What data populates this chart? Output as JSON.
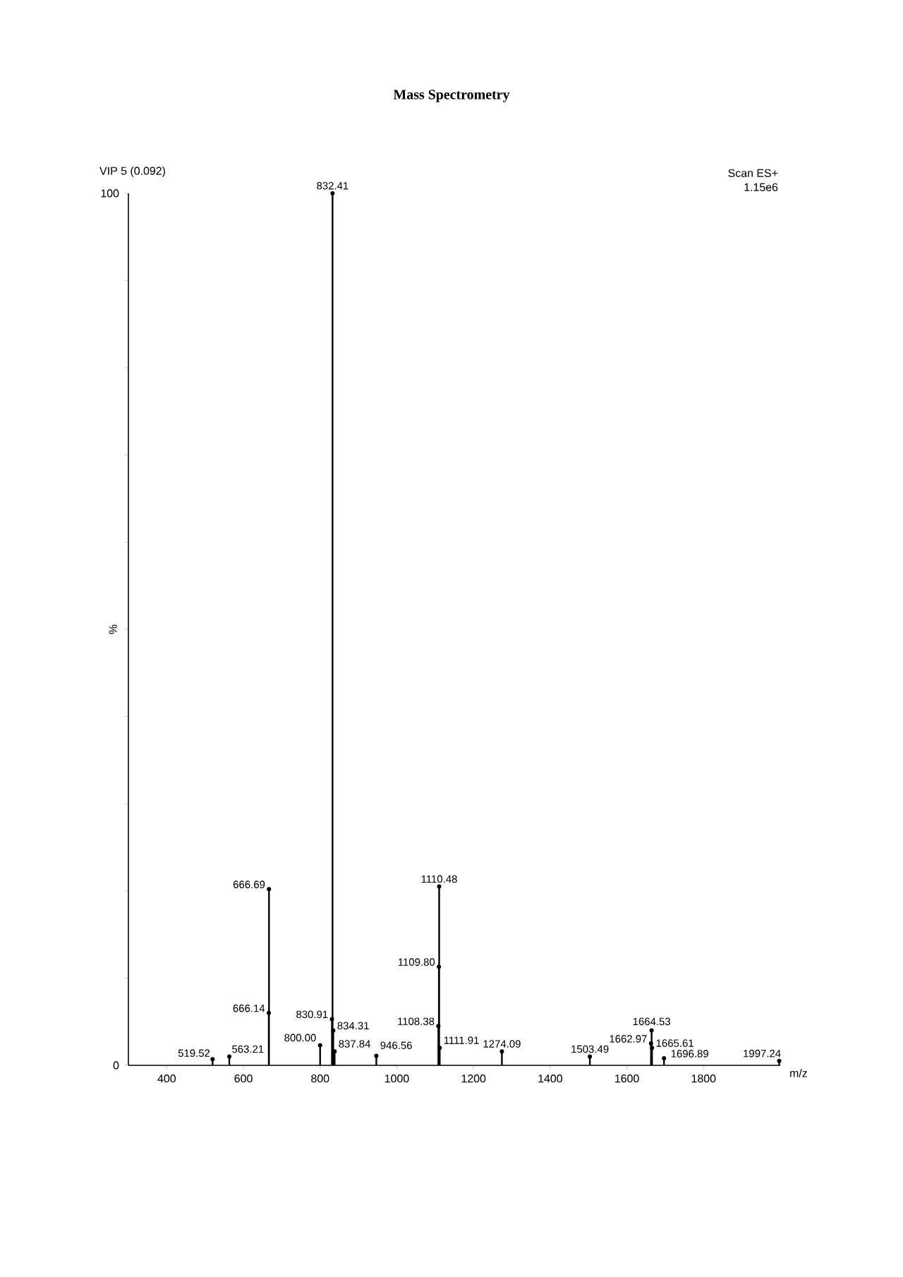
{
  "chart_data": {
    "type": "lollipop",
    "marker": "circle",
    "title": "Mass Spectrometry",
    "xlabel": "m/z",
    "ylabel": "%",
    "series": [
      {
        "color": "#000000",
        "x": [
          519.52,
          563.21,
          666.14,
          666.69,
          800.0,
          830.91,
          832.41,
          834.31,
          837.84,
          946.56,
          1108.38,
          1109.8,
          1110.48,
          1111.91,
          1274.09,
          1503.49,
          1662.97,
          1664.53,
          1665.61,
          1696.89,
          1997.24
        ],
        "values": [
          0.7,
          1,
          6,
          20.2,
          2.3,
          5.3,
          100,
          4,
          1.6,
          1.1,
          4.5,
          11.3,
          20.5,
          2,
          1.6,
          1,
          2.5,
          4,
          2,
          0.8,
          0.5
        ]
      }
    ],
    "xlim": [
      300,
      2000
    ],
    "ylim": [
      0,
      100
    ],
    "xticks": [
      400,
      600,
      800,
      1000,
      1200,
      1400,
      1600,
      1800
    ],
    "yticks": [
      0,
      {
        "value": 10,
        "label": null
      },
      {
        "value": 20,
        "label": null
      },
      {
        "value": 30,
        "label": null
      },
      {
        "value": 40,
        "label": null
      },
      {
        "value": 50,
        "label": null
      },
      {
        "value": 60,
        "label": null
      },
      {
        "value": 70,
        "label": null
      },
      {
        "value": 80,
        "label": null
      },
      {
        "value": 90,
        "label": null
      },
      100
    ],
    "annotations": [
      "VIP 5 (0.092)",
      "Scan ES+",
      "1.15e6",
      {
        "text": "519.52",
        "x": 519.52,
        "y": 0.7
      },
      {
        "text": "563.21",
        "x": 563.21,
        "y": 1
      },
      {
        "text": "666.14",
        "x": 666.14,
        "y": 6
      },
      {
        "text": "666.69",
        "x": 666.69,
        "y": 20.2
      },
      {
        "text": "800.00",
        "x": 800.0,
        "y": 2.3
      },
      {
        "text": "830.91",
        "x": 830.91,
        "y": 5.3
      },
      {
        "text": "832.41",
        "x": 832.41,
        "y": 100
      },
      {
        "text": "834.31",
        "x": 834.31,
        "y": 4
      },
      {
        "text": "837.84",
        "x": 837.84,
        "y": 1.6
      },
      {
        "text": "946.56",
        "x": 946.56,
        "y": 1.1
      },
      {
        "text": "1108.38",
        "x": 1108.38,
        "y": 4.5
      },
      {
        "text": "1109.80",
        "x": 1109.8,
        "y": 11.3
      },
      {
        "text": "1110.48",
        "x": 1110.48,
        "y": 20.5
      },
      {
        "text": "1111.91",
        "x": 1111.91,
        "y": 2
      },
      {
        "text": "1274.09",
        "x": 1274.09,
        "y": 1.6
      },
      {
        "text": "1503.49",
        "x": 1503.49,
        "y": 1
      },
      {
        "text": "1662.97",
        "x": 1662.97,
        "y": 2.5
      },
      {
        "text": "1664.53",
        "x": 1664.53,
        "y": 4
      },
      {
        "text": "1665.61",
        "x": 1665.61,
        "y": 2
      },
      {
        "text": "1696.89",
        "x": 1696.89,
        "y": 0.8
      },
      {
        "text": "1997.24",
        "x": 1997.24,
        "y": 0.5
      }
    ]
  }
}
